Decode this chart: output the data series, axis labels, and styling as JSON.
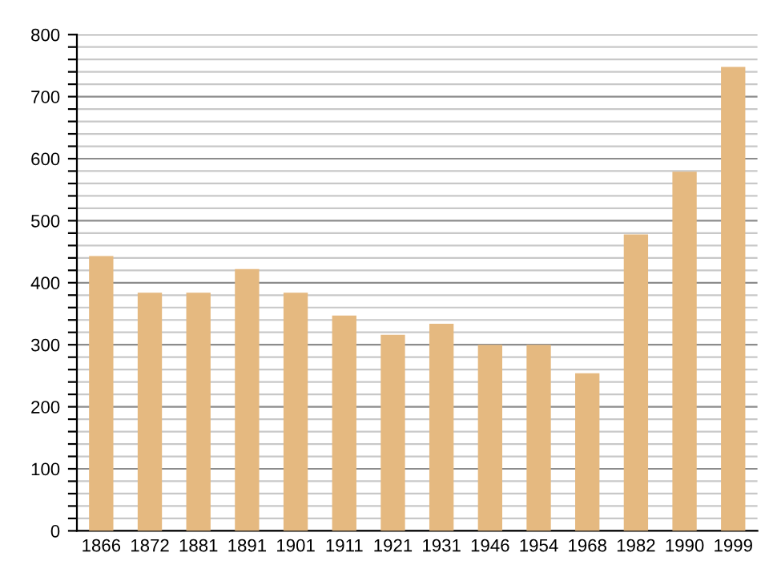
{
  "chart_data": {
    "type": "bar",
    "categories": [
      "1866",
      "1872",
      "1881",
      "1891",
      "1901",
      "1911",
      "1921",
      "1931",
      "1946",
      "1954",
      "1968",
      "1982",
      "1990",
      "1999"
    ],
    "values": [
      443,
      384,
      384,
      422,
      384,
      347,
      316,
      334,
      300,
      300,
      254,
      478,
      579,
      748
    ],
    "color": "#e5b980",
    "ylim": [
      0,
      800
    ],
    "yticks": [
      0,
      {
        "value": 20,
        "label": null
      },
      {
        "value": 40,
        "label": null
      },
      {
        "value": 60,
        "label": null
      },
      {
        "value": 80,
        "label": null
      },
      100,
      {
        "value": 120,
        "label": null
      },
      {
        "value": 140,
        "label": null
      },
      {
        "value": 160,
        "label": null
      },
      {
        "value": 180,
        "label": null
      },
      200,
      {
        "value": 220,
        "label": null
      },
      {
        "value": 240,
        "label": null
      },
      {
        "value": 260,
        "label": null
      },
      {
        "value": 280,
        "label": null
      },
      300,
      {
        "value": 320,
        "label": null
      },
      {
        "value": 340,
        "label": null
      },
      {
        "value": 360,
        "label": null
      },
      {
        "value": 380,
        "label": null
      },
      400,
      {
        "value": 420,
        "label": null
      },
      {
        "value": 440,
        "label": null
      },
      {
        "value": 460,
        "label": null
      },
      {
        "value": 480,
        "label": null
      },
      500,
      {
        "value": 520,
        "label": null
      },
      {
        "value": 540,
        "label": null
      },
      {
        "value": 560,
        "label": null
      },
      {
        "value": 580,
        "label": null
      },
      600,
      {
        "value": 620,
        "label": null
      },
      {
        "value": 640,
        "label": null
      },
      {
        "value": 660,
        "label": null
      },
      {
        "value": 680,
        "label": null
      },
      700,
      {
        "value": 720,
        "label": null
      },
      {
        "value": 740,
        "label": null
      },
      {
        "value": 760,
        "label": null
      },
      {
        "value": 780,
        "label": null
      },
      800
    ],
    "grid": "y"
  }
}
